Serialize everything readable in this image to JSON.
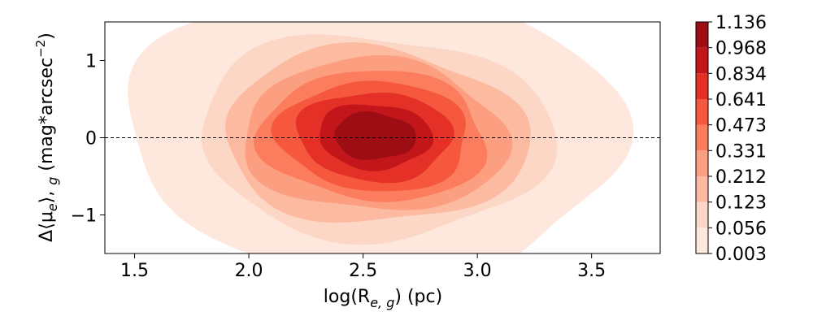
{
  "chart_data": {
    "type": "contour",
    "xlabel": "log(R",
    "xlabel_sub": "e, g",
    "xlabel_unit": ") (pc)",
    "ylabel_prefix": "Δ⟨μ",
    "ylabel_sub_e": "e",
    "ylabel_mid": "⟩, ",
    "ylabel_sub_g": "g",
    "ylabel_unit": " (mag*arcsec",
    "ylabel_sup": "−2",
    "ylabel_close": ")",
    "xlim": [
      1.37,
      3.8
    ],
    "ylim": [
      -1.5,
      1.5
    ],
    "x_ticks": [
      1.5,
      2.0,
      2.5,
      3.0,
      3.5
    ],
    "x_tick_labels": [
      "1.5",
      "2.0",
      "2.5",
      "3.0",
      "3.5"
    ],
    "y_ticks": [
      1,
      0,
      -1
    ],
    "y_tick_labels": [
      "1",
      "0",
      "−1"
    ],
    "reference_line_y": 0,
    "reference_line_style": "dashed",
    "grid": false,
    "colormap": "Reds",
    "levels": [
      0.003,
      0.056,
      0.123,
      0.212,
      0.331,
      0.473,
      0.641,
      0.834,
      0.968,
      1.136
    ],
    "level_labels": [
      "0.003",
      "0.056",
      "0.123",
      "0.212",
      "0.331",
      "0.473",
      "0.641",
      "0.834",
      "0.968",
      "1.136"
    ],
    "level_colors": [
      "#fee8de",
      "#fdd7c6",
      "#fcbba1",
      "#fc9f81",
      "#fb7d5d",
      "#f6583e",
      "#e43027",
      "#c3161b",
      "#9e0d14",
      "#8b0a11"
    ],
    "density_center": {
      "x": 2.55,
      "y": 0.02
    },
    "density_spread": {
      "x": 0.34,
      "y": 0.58
    },
    "colorbar_position": "right"
  }
}
